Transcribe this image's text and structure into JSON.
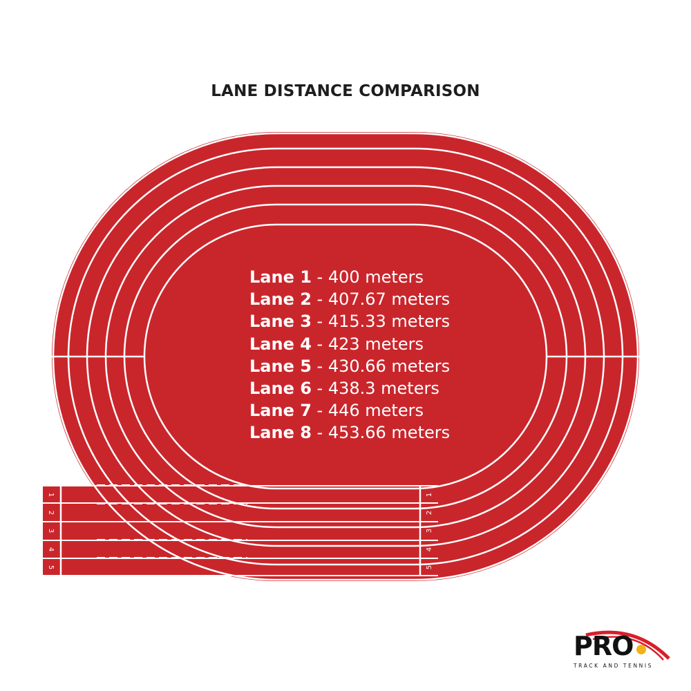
{
  "title": "LANE DISTANCE COMPARISON",
  "lanes": [
    {
      "name": "Lane 1",
      "distance": "- 400 meters"
    },
    {
      "name": "Lane 2",
      "distance": "- 407.67 meters"
    },
    {
      "name": "Lane 3",
      "distance": "- 415.33 meters"
    },
    {
      "name": "Lane 4",
      "distance": "- 423 meters"
    },
    {
      "name": "Lane 5",
      "distance": "- 430.66 meters"
    },
    {
      "name": "Lane 6",
      "distance": "- 438.3 meters"
    },
    {
      "name": "Lane 7",
      "distance": "- 446 meters"
    },
    {
      "name": "Lane 8",
      "distance": "- 453.66 meters"
    }
  ],
  "start_numbers": [
    "1",
    "2",
    "3",
    "4",
    "5"
  ],
  "logo": {
    "brand": "PRO",
    "tagline": "TRACK AND TENNIS"
  },
  "colors": {
    "track": "#c9262c",
    "lines": "#ffffff",
    "logo_accent": "#d81e2a",
    "logo_ball": "#f2b21a"
  }
}
